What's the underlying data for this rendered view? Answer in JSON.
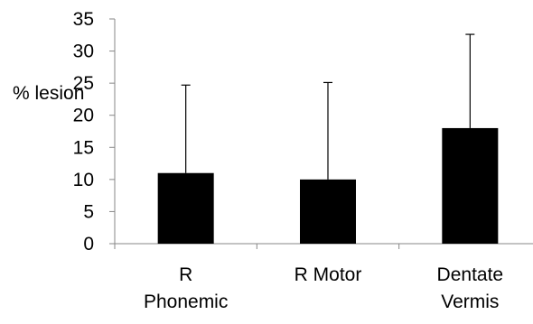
{
  "chart_data": {
    "type": "bar",
    "ylabel": "% lesion",
    "ylim": [
      0,
      35
    ],
    "yticks": [
      0,
      5,
      10,
      15,
      20,
      25,
      30,
      35
    ],
    "grid": false,
    "categories": [
      [
        "R",
        "Phonemic"
      ],
      [
        "R Motor"
      ],
      [
        "Dentate",
        "Vermis"
      ]
    ],
    "series": [
      {
        "values": [
          11,
          10,
          18
        ],
        "error_upper": [
          24.7,
          25.1,
          32.6
        ],
        "color": "#000000"
      }
    ]
  }
}
